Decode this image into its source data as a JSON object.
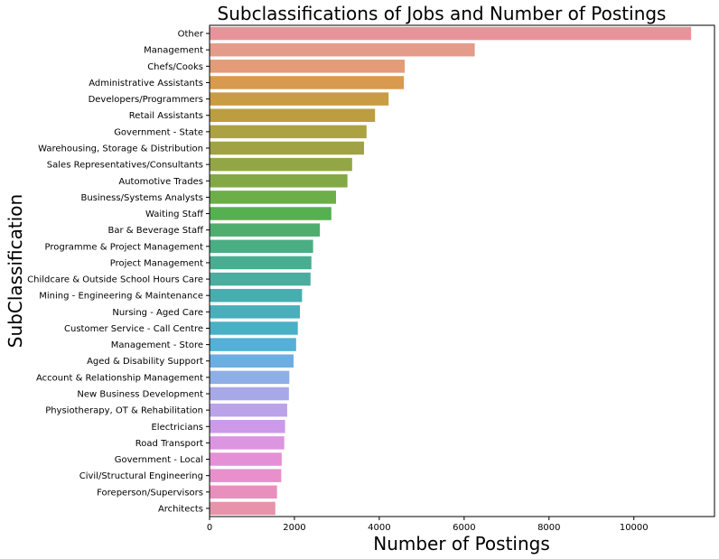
{
  "chart_data": {
    "type": "bar",
    "orientation": "horizontal",
    "title": "Subclassifications of Jobs and Number of Postings",
    "xlabel": "Number of Postings",
    "ylabel": "SubClassification",
    "xlim": [
      0,
      11900
    ],
    "xticks": [
      0,
      2000,
      4000,
      6000,
      8000,
      10000
    ],
    "xtick_labels": [
      "0",
      "2000",
      "4000",
      "6000",
      "8000",
      "10000"
    ],
    "grid": false,
    "categories": [
      "Other",
      "Management",
      "Chefs/Cooks",
      "Administrative Assistants",
      "Developers/Programmers",
      "Retail Assistants",
      "Government - State",
      "Warehousing, Storage & Distribution",
      "Sales Representatives/Consultants",
      "Automotive Trades",
      "Business/Systems Analysts",
      "Waiting Staff",
      "Bar & Beverage Staff",
      "Programme & Project Management",
      "Project Management",
      "Childcare & Outside School Hours Care",
      "Mining - Engineering & Maintenance",
      "Nursing - Aged Care",
      "Customer Service - Call Centre",
      "Management - Store",
      "Aged & Disability Support",
      "Account & Relationship Management",
      "New Business Development",
      "Physiotherapy, OT & Rehabilitation",
      "Electricians",
      "Road Transport",
      "Government - Local",
      "Civil/Structural Engineering",
      "Foreperson/Supervisors",
      "Architects"
    ],
    "values": [
      11350,
      6250,
      4600,
      4580,
      4220,
      3900,
      3700,
      3640,
      3360,
      3250,
      2980,
      2870,
      2600,
      2440,
      2400,
      2380,
      2180,
      2130,
      2080,
      2040,
      1980,
      1880,
      1870,
      1830,
      1780,
      1760,
      1700,
      1690,
      1590,
      1550
    ],
    "colors": [
      "#e8939a",
      "#e59b8a",
      "#e39b78",
      "#d89a4f",
      "#c99b44",
      "#bc9d40",
      "#aca244",
      "#a0a244",
      "#93a646",
      "#83a947",
      "#6cae48",
      "#55b150",
      "#4fad6d",
      "#4bad84",
      "#4aad92",
      "#4aad9f",
      "#48adae",
      "#48afbb",
      "#49b0c6",
      "#53b0d7",
      "#6caee2",
      "#8daee6",
      "#a6a8e8",
      "#bba3ea",
      "#cc9ae8",
      "#dc95e0",
      "#e590d6",
      "#e98fcb",
      "#e98fbd",
      "#e893ac"
    ]
  }
}
